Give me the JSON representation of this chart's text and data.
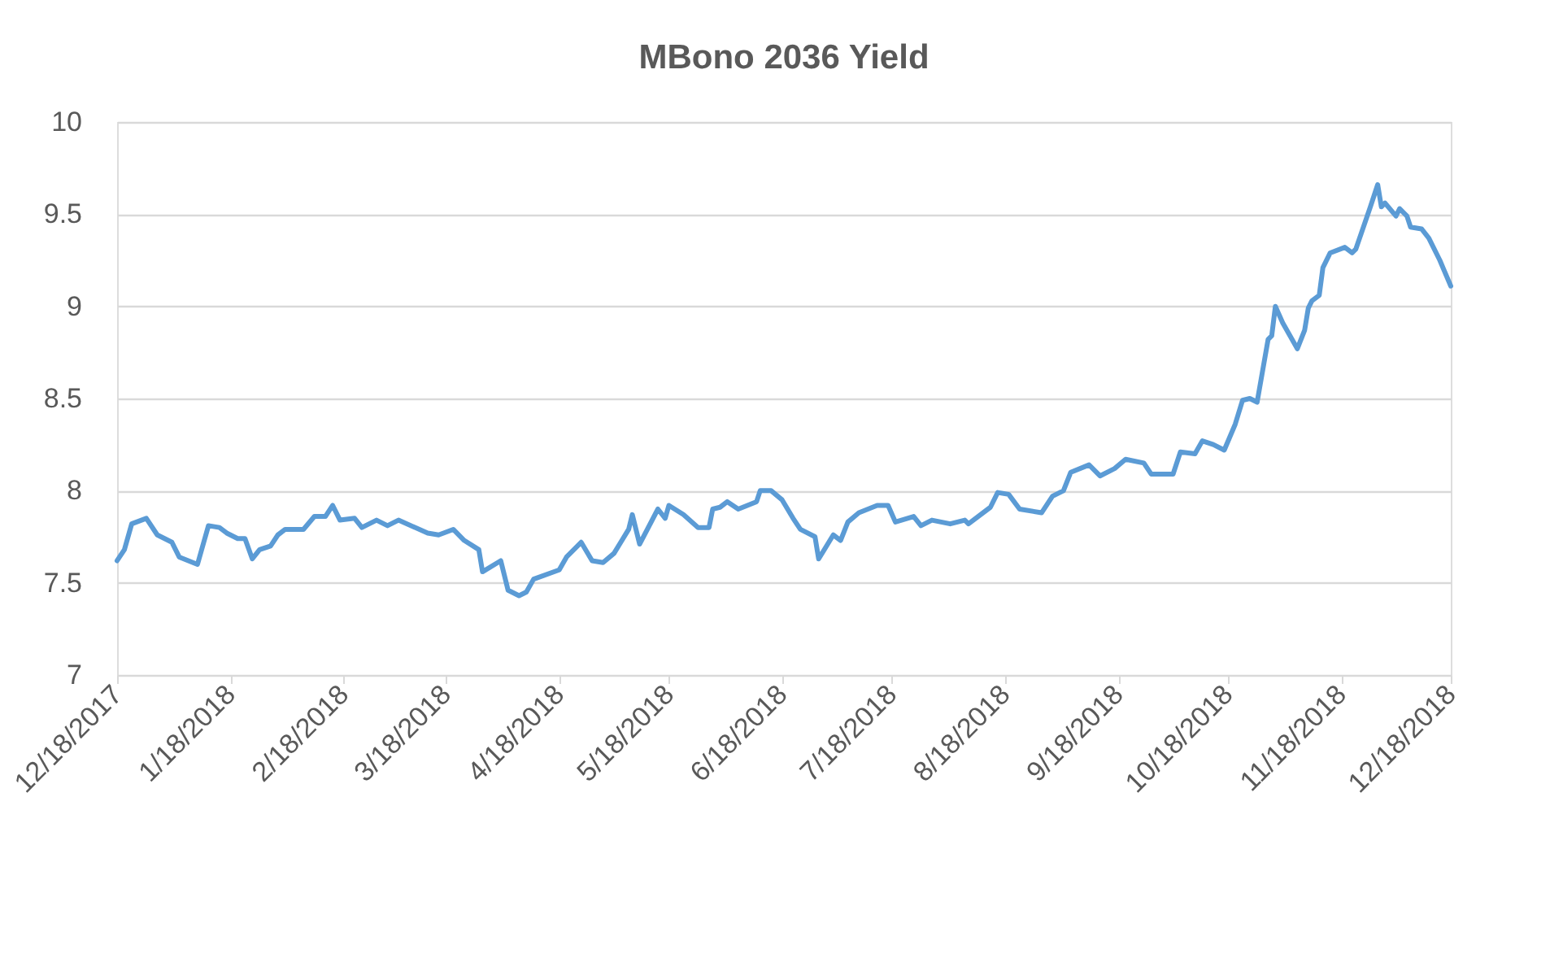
{
  "chart_data": {
    "type": "line",
    "title": "MBono 2036 Yield",
    "x": [
      "2017-12-18",
      "2017-12-20",
      "2017-12-22",
      "2017-12-26",
      "2017-12-29",
      "2018-01-02",
      "2018-01-04",
      "2018-01-09",
      "2018-01-12",
      "2018-01-15",
      "2018-01-17",
      "2018-01-20",
      "2018-01-22",
      "2018-01-24",
      "2018-01-26",
      "2018-01-29",
      "2018-01-31",
      "2018-02-02",
      "2018-02-07",
      "2018-02-10",
      "2018-02-13",
      "2018-02-15",
      "2018-02-17",
      "2018-02-21",
      "2018-02-23",
      "2018-02-27",
      "2018-03-02",
      "2018-03-05",
      "2018-03-13",
      "2018-03-16",
      "2018-03-20",
      "2018-03-23",
      "2018-03-27",
      "2018-03-28",
      "2018-04-02",
      "2018-04-04",
      "2018-04-07",
      "2018-04-09",
      "2018-04-11",
      "2018-04-18",
      "2018-04-20",
      "2018-04-24",
      "2018-04-27",
      "2018-04-30",
      "2018-05-03",
      "2018-05-07",
      "2018-05-08",
      "2018-05-10",
      "2018-05-15",
      "2018-05-17",
      "2018-05-18",
      "2018-05-22",
      "2018-05-26",
      "2018-05-29",
      "2018-05-30",
      "2018-06-01",
      "2018-06-03",
      "2018-06-06",
      "2018-06-11",
      "2018-06-12",
      "2018-06-15",
      "2018-06-18",
      "2018-06-21",
      "2018-06-23",
      "2018-06-27",
      "2018-06-28",
      "2018-07-02",
      "2018-07-04",
      "2018-07-06",
      "2018-07-09",
      "2018-07-14",
      "2018-07-17",
      "2018-07-19",
      "2018-07-24",
      "2018-07-26",
      "2018-07-29",
      "2018-08-03",
      "2018-08-07",
      "2018-08-08",
      "2018-08-14",
      "2018-08-16",
      "2018-08-19",
      "2018-08-22",
      "2018-08-28",
      "2018-08-31",
      "2018-09-03",
      "2018-09-05",
      "2018-09-10",
      "2018-09-13",
      "2018-09-17",
      "2018-09-20",
      "2018-09-25",
      "2018-09-27",
      "2018-10-01",
      "2018-10-03",
      "2018-10-05",
      "2018-10-09",
      "2018-10-11",
      "2018-10-14",
      "2018-10-17",
      "2018-10-20",
      "2018-10-22",
      "2018-10-24",
      "2018-10-26",
      "2018-10-29",
      "2018-10-30",
      "2018-10-31",
      "2018-11-02",
      "2018-11-06",
      "2018-11-08",
      "2018-11-09",
      "2018-11-10",
      "2018-11-12",
      "2018-11-13",
      "2018-11-15",
      "2018-11-19",
      "2018-11-21",
      "2018-11-22",
      "2018-11-26",
      "2018-11-28",
      "2018-11-29",
      "2018-11-30",
      "2018-12-03",
      "2018-12-04",
      "2018-12-06",
      "2018-12-07",
      "2018-12-10",
      "2018-12-12",
      "2018-12-15",
      "2018-12-18"
    ],
    "series": [
      {
        "color": "#5b9bd5",
        "values": [
          7.62,
          7.68,
          7.82,
          7.85,
          7.76,
          7.72,
          7.64,
          7.6,
          7.81,
          7.8,
          7.77,
          7.74,
          7.74,
          7.63,
          7.68,
          7.7,
          7.76,
          7.79,
          7.79,
          7.86,
          7.86,
          7.92,
          7.84,
          7.85,
          7.8,
          7.84,
          7.81,
          7.84,
          7.77,
          7.76,
          7.79,
          7.73,
          7.68,
          7.56,
          7.62,
          7.46,
          7.43,
          7.45,
          7.52,
          7.57,
          7.64,
          7.72,
          7.62,
          7.61,
          7.66,
          7.79,
          7.87,
          7.71,
          7.9,
          7.85,
          7.92,
          7.87,
          7.8,
          7.8,
          7.9,
          7.91,
          7.94,
          7.9,
          7.94,
          8.0,
          8.0,
          7.95,
          7.85,
          7.79,
          7.75,
          7.63,
          7.76,
          7.73,
          7.83,
          7.88,
          7.92,
          7.92,
          7.83,
          7.86,
          7.81,
          7.84,
          7.82,
          7.84,
          7.82,
          7.91,
          7.99,
          7.98,
          7.9,
          7.88,
          7.97,
          8.0,
          8.1,
          8.14,
          8.08,
          8.12,
          8.17,
          8.15,
          8.09,
          8.09,
          8.09,
          8.21,
          8.2,
          8.27,
          8.25,
          8.22,
          8.36,
          8.49,
          8.5,
          8.48,
          8.82,
          8.84,
          9.0,
          8.91,
          8.77,
          8.87,
          8.99,
          9.03,
          9.06,
          9.21,
          9.29,
          9.32,
          9.29,
          9.31,
          9.54,
          9.66,
          9.54,
          9.56,
          9.49,
          9.53,
          9.49,
          9.43,
          9.42,
          9.37,
          9.25,
          9.11
        ]
      }
    ],
    "xlim": [
      "2017-12-18",
      "2018-12-18"
    ],
    "xticks": [
      {
        "value": "2017-12-18",
        "label": "12/18/2017"
      },
      {
        "value": "2018-01-18",
        "label": "1/18/2018"
      },
      {
        "value": "2018-02-18",
        "label": "2/18/2018"
      },
      {
        "value": "2018-03-18",
        "label": "3/18/2018"
      },
      {
        "value": "2018-04-18",
        "label": "4/18/2018"
      },
      {
        "value": "2018-05-18",
        "label": "5/18/2018"
      },
      {
        "value": "2018-06-18",
        "label": "6/18/2018"
      },
      {
        "value": "2018-07-18",
        "label": "7/18/2018"
      },
      {
        "value": "2018-08-18",
        "label": "8/18/2018"
      },
      {
        "value": "2018-09-18",
        "label": "9/18/2018"
      },
      {
        "value": "2018-10-18",
        "label": "10/18/2018"
      },
      {
        "value": "2018-11-18",
        "label": "11/18/2018"
      },
      {
        "value": "2018-12-18",
        "label": "12/18/2018"
      }
    ],
    "ylim": [
      7,
      10
    ],
    "yticks": [
      7,
      7.5,
      8,
      8.5,
      9,
      9.5,
      10
    ],
    "grid": "y",
    "legend": false,
    "marker": "none",
    "line_style": "solid"
  }
}
